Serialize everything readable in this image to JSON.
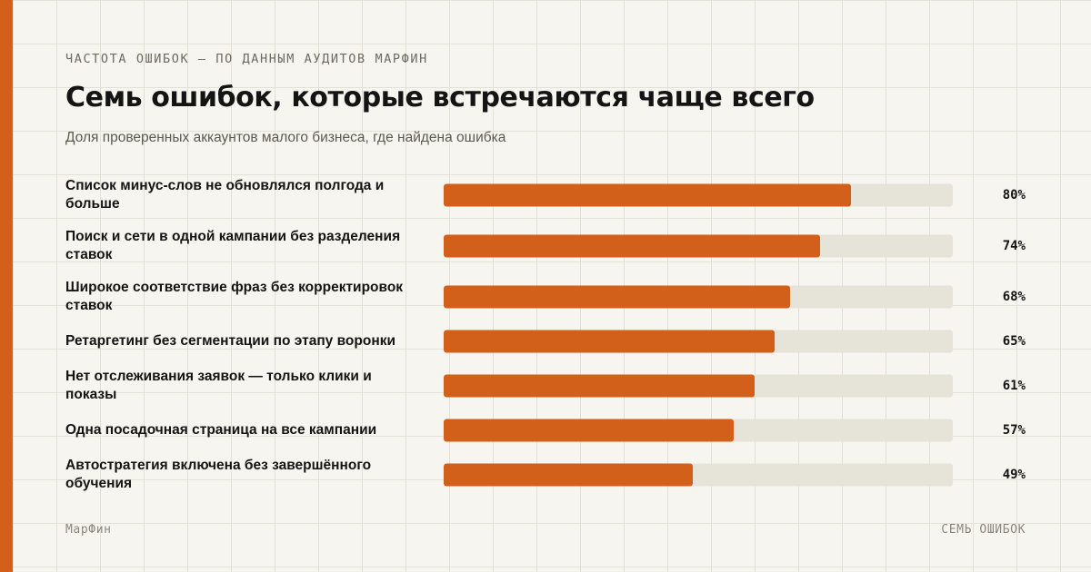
{
  "header": {
    "kicker": "ЧАСТОТА ОШИБОК — ПО ДАННЫМ АУДИТОВ МАРФИН",
    "title": "Семь ошибок, которые встречаются чаще всего",
    "subtitle": "Доля проверенных аккаунтов малого бизнеса, где найдена ошибка"
  },
  "colors": {
    "accent": "#d2601a",
    "track": "#e6e3d8",
    "background": "#f7f5ef"
  },
  "chart_data": {
    "type": "bar",
    "orientation": "horizontal",
    "categories": [
      "Список минус-слов не обновлялся полгода и больше",
      "Поиск и сети в одной кампании без разделения ставок",
      "Широкое соответствие фраз без корректировок ставок",
      "Ретаргетинг без сегментации по этапу воронки",
      "Нет отслеживания заявок — только клики и показы",
      "Одна посадочная страница на все кампании",
      "Автостратегия включена без завершённого обучения"
    ],
    "values": [
      80,
      74,
      68,
      65,
      61,
      57,
      49
    ],
    "value_labels": [
      "80%",
      "74%",
      "68%",
      "65%",
      "61%",
      "57%",
      "49%"
    ],
    "xlim": [
      0,
      100
    ],
    "grid": false
  },
  "footer": {
    "brand": "МарФин",
    "tag": "СЕМЬ ОШИБОК"
  }
}
